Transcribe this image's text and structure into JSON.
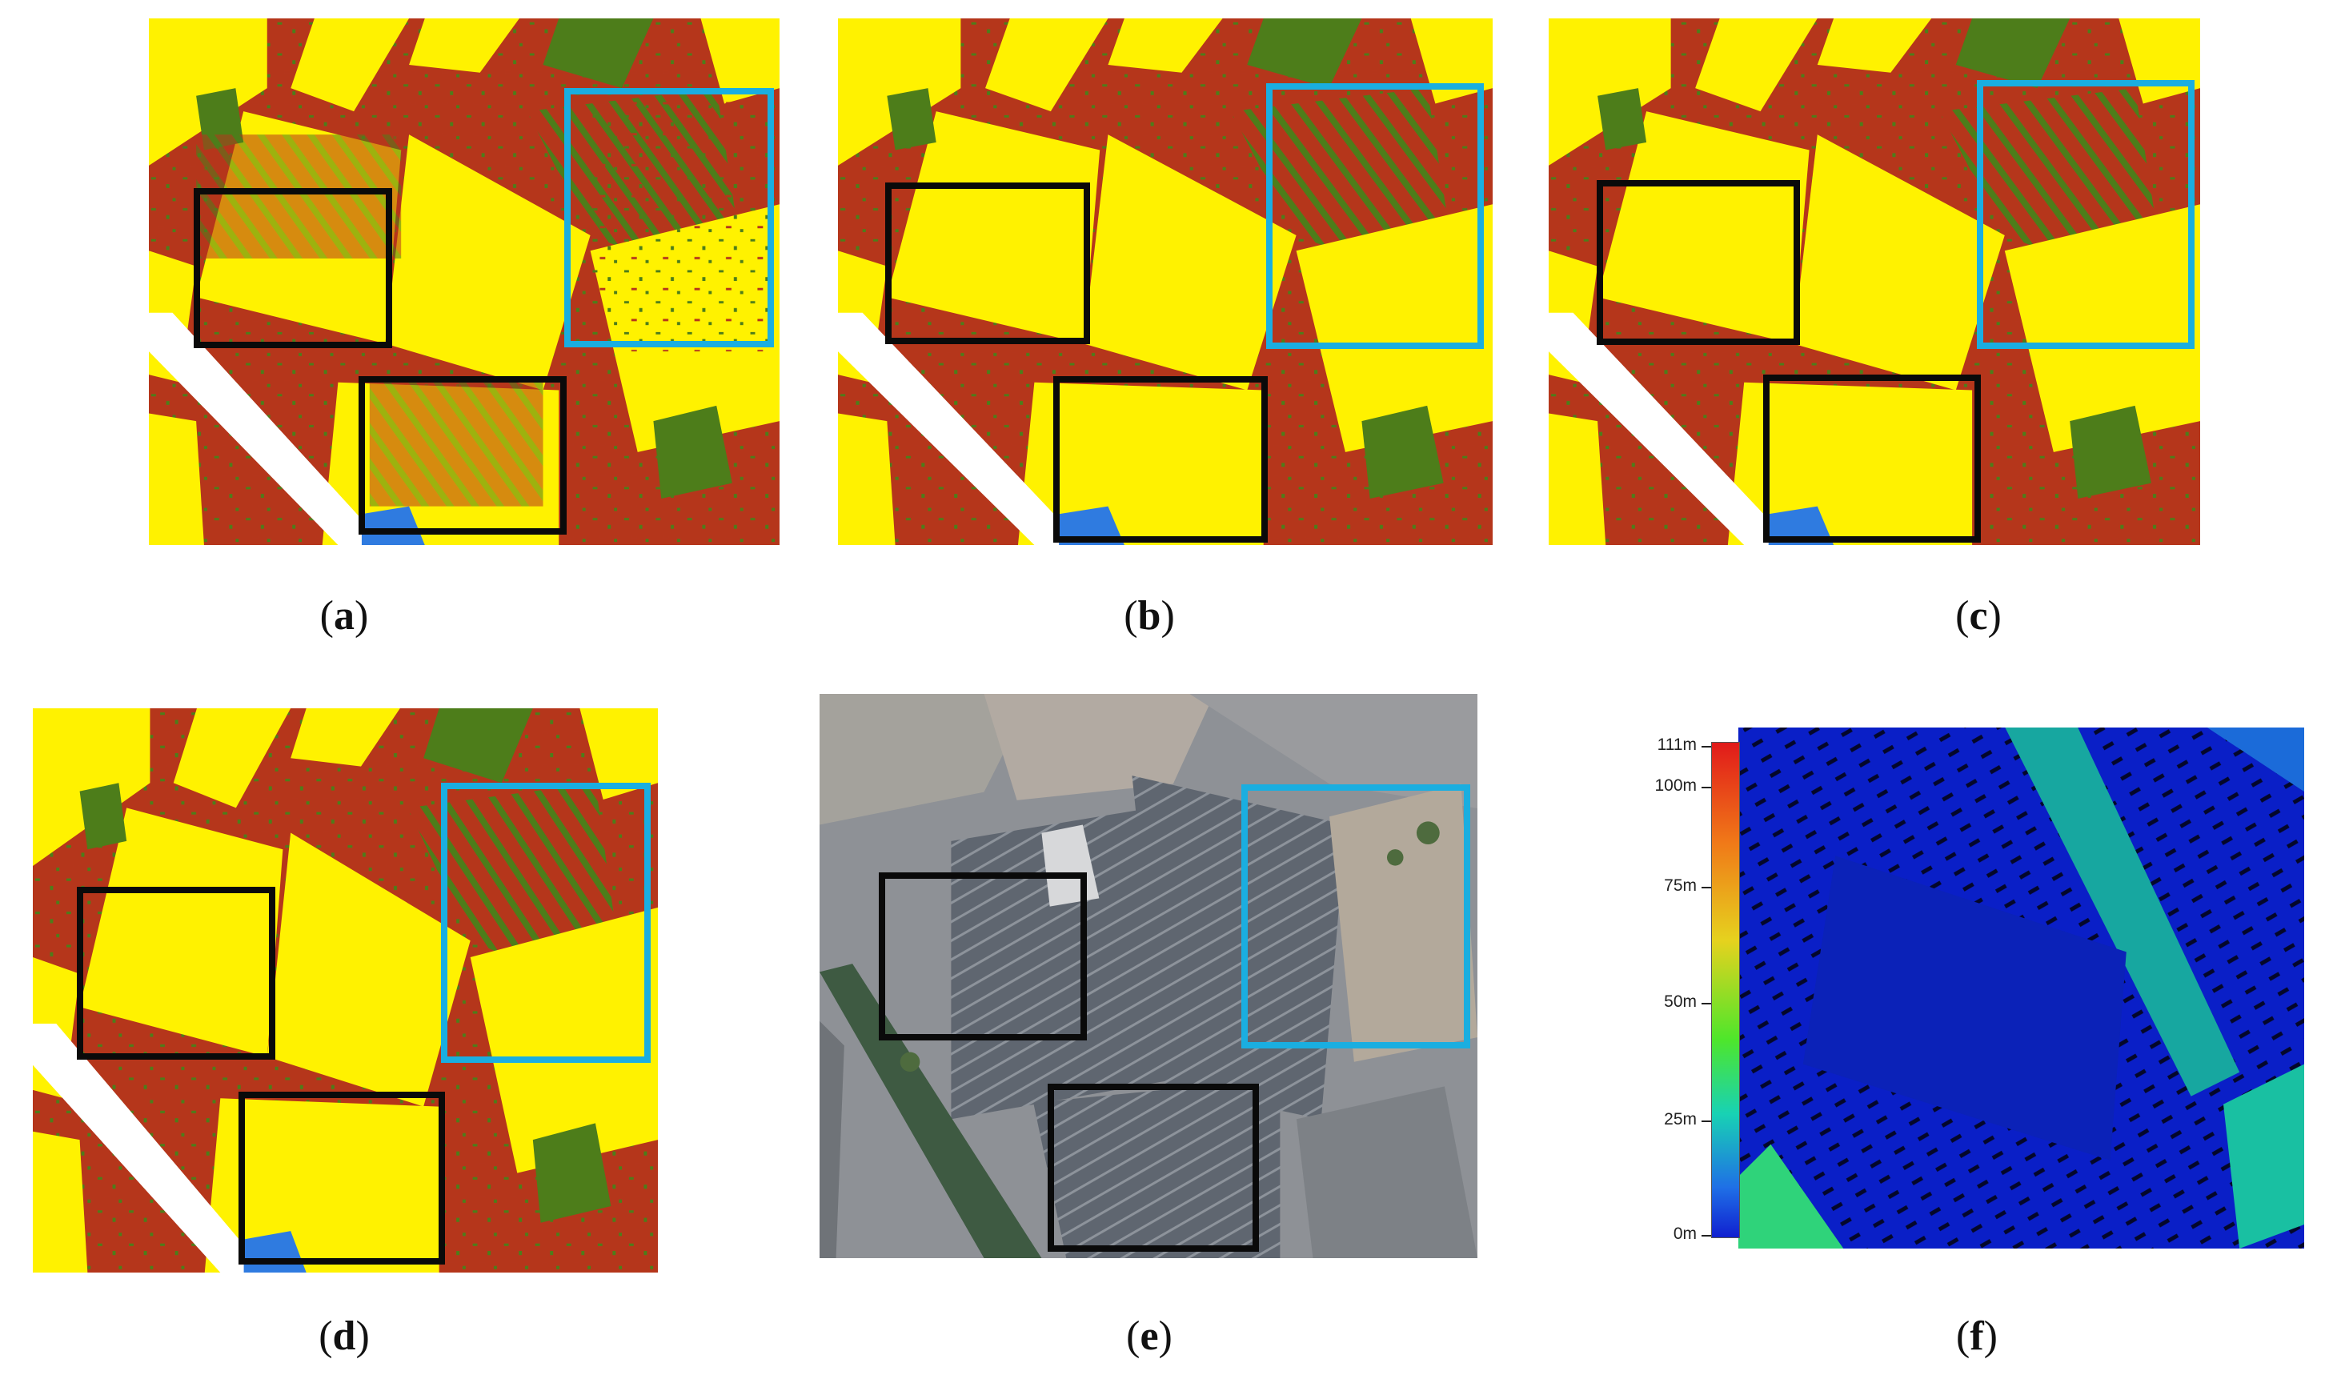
{
  "figure": {
    "panels": [
      {
        "id": "a",
        "label": "a",
        "kind": "classification map"
      },
      {
        "id": "b",
        "label": "b",
        "kind": "classification map"
      },
      {
        "id": "c",
        "label": "c",
        "kind": "classification map"
      },
      {
        "id": "d",
        "label": "d",
        "kind": "classification map"
      },
      {
        "id": "e",
        "label": "e",
        "kind": "aerial photograph"
      },
      {
        "id": "f",
        "label": "f",
        "kind": "height map"
      }
    ],
    "colors": {
      "class_roof": "#fff200",
      "class_ground": "#b5361b",
      "class_vegetation": "#4d7d1a",
      "class_water": "#2f7be0",
      "class_unclassified": "#ffffff",
      "highlight_black": "#0a0a0a",
      "highlight_cyan": "#1aaee0"
    },
    "height_colorbar": {
      "ticks": [
        "111m",
        "100m",
        "75m",
        "50m",
        "25m",
        "0m"
      ],
      "max_value": 111,
      "min_value": 0
    }
  }
}
